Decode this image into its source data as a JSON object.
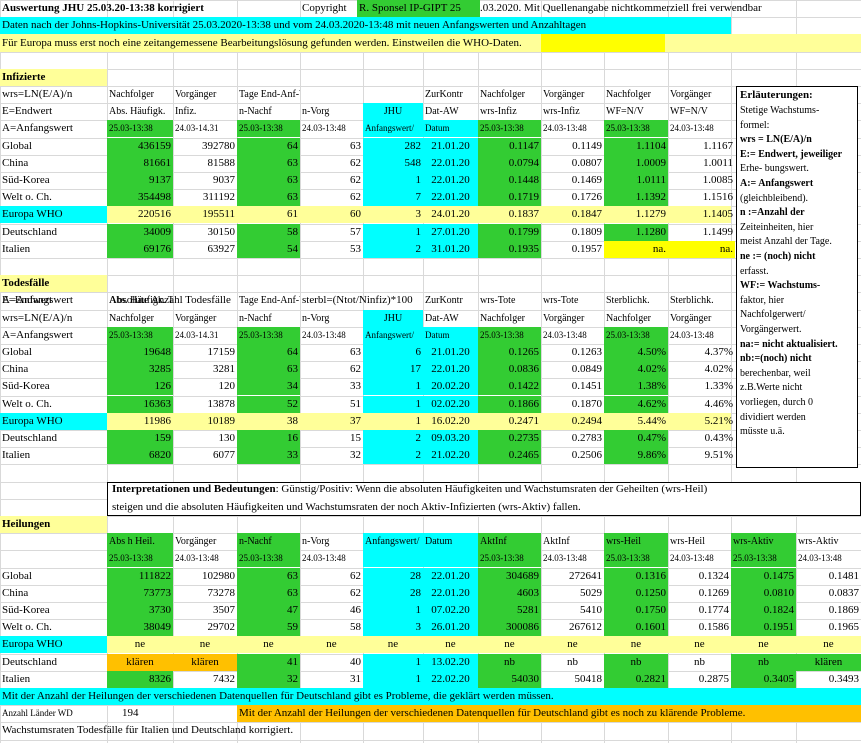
{
  "header": {
    "title": "Auswertung JHU 25.03.20-13:38 korrigiert",
    "copyright_pre": "Copyright",
    "copyright_green": "R. Sponsel IP-GIPT 25",
    "copyright_post": ".03.2020. Mit Quellenangabe nichtkommerziell frei verwendbar",
    "source_line": "Daten nach der Johns-Hopkins-Universität 25.03.2020-13:38  und vom 24.03.2020-13:48 mit neuen Anfangswerten und Anzahltagen",
    "europe_line": "Für Europa muss erst noch eine zeitangemessene Bearbeitungslösung gefunden werden. Einstweilen die WHO-Daten."
  },
  "infizierte": {
    "title": "Infizierte",
    "hdr1": [
      "wrs=LN(E/A)/n",
      "Nachfolger",
      "Vorgänger",
      "Tage End-Anf-Wert",
      "",
      "",
      "ZurKontr",
      "Nachfolger",
      "Vorgänger",
      "Nachfolger",
      "Vorgänger"
    ],
    "hdr2": [
      "E=Endwert",
      "Abs. Häufigk.",
      "Infiz.",
      "n-Nachf",
      "n-Vorg",
      "JHU",
      "Dat-AW",
      "wrs-Infiz",
      "wrs-Infiz",
      "WF=N/V",
      "WF=N/V"
    ],
    "hdr3": [
      "A=Anfangswert",
      "25.03-13:38",
      "24.03-14.31",
      "25.03-13:38",
      "24.03-13:48",
      "Anfangswert/",
      "Datum",
      "25.03-13:38",
      "24.03-13:48",
      "25.03-13:38",
      "24.03-13:48"
    ],
    "rows": [
      {
        "name": "Global",
        "v": [
          "436159",
          "392780",
          "64",
          "63",
          "282",
          "21.01.20",
          "0.1147",
          "0.1149",
          "1.1104",
          "1.1167"
        ]
      },
      {
        "name": "China",
        "v": [
          "81661",
          "81588",
          "63",
          "62",
          "548",
          "22.01.20",
          "0.0794",
          "0.0807",
          "1.0009",
          "1.0011"
        ]
      },
      {
        "name": "Süd-Korea",
        "v": [
          "9137",
          "9037",
          "63",
          "62",
          "1",
          "22.01.20",
          "0.1448",
          "0.1469",
          "1.0111",
          "1.0085"
        ]
      },
      {
        "name": "Welt o. Ch.",
        "v": [
          "354498",
          "311192",
          "63",
          "62",
          "7",
          "22.01.20",
          "0.1719",
          "0.1726",
          "1.1392",
          "1.1516"
        ]
      },
      {
        "name": "Europa WHO",
        "v": [
          "220516",
          "195511",
          "61",
          "60",
          "3",
          "24.01.20",
          "0.1837",
          "0.1847",
          "1.1279",
          "1.1405"
        ]
      },
      {
        "name": "Deutschland",
        "v": [
          "34009",
          "30150",
          "58",
          "57",
          "1",
          "27.01.20",
          "0.1799",
          "0.1809",
          "1.1280",
          "1.1499"
        ]
      },
      {
        "name": "Italien",
        "v": [
          "69176",
          "63927",
          "54",
          "53",
          "2",
          "31.01.20",
          "0.1935",
          "0.1957",
          "na.",
          "na."
        ]
      }
    ]
  },
  "todesfaelle": {
    "title": "Todesfälle",
    "sub_a": "A=Anfangswert",
    "sub_abs": "Absolute Anzahl Todesfälle",
    "sub_formula": "sterbl=(Ntot/Ninfiz)*100",
    "hdr1": [
      "E=Endwert",
      "Abs. Häufigk. Tote",
      "",
      "Tage End-Anf-Wert",
      "",
      "",
      "ZurKontr",
      "wrs-Tote",
      "wrs-Tote",
      "Sterblichk.",
      "Sterblichk."
    ],
    "hdr2": [
      "wrs=LN(E/A)/n",
      "Nachfolger",
      "Vorgänger",
      "n-Nachf",
      "n-Vorg",
      "JHU",
      "Dat-AW",
      "Nachfolger",
      "Vorgänger",
      "Nachfolger",
      "Vorgänger"
    ],
    "hdr3": [
      "A=Anfangswert",
      "25.03-13:38",
      "24.03-14.31",
      "25.03-13:38",
      "24.03-13:48",
      "Anfangswert/",
      "Datum",
      "25.03-13:38",
      "24.03-13:48",
      "25.03-13:38",
      "24.03-13:48"
    ],
    "rows": [
      {
        "name": "Global",
        "v": [
          "19648",
          "17159",
          "64",
          "63",
          "6",
          "21.01.20",
          "0.1265",
          "0.1263",
          "4.50%",
          "4.37%"
        ]
      },
      {
        "name": "China",
        "v": [
          "3285",
          "3281",
          "63",
          "62",
          "17",
          "22.01.20",
          "0.0836",
          "0.0849",
          "4.02%",
          "4.02%"
        ]
      },
      {
        "name": "Süd-Korea",
        "v": [
          "126",
          "120",
          "34",
          "33",
          "1",
          "20.02.20",
          "0.1422",
          "0.1451",
          "1.38%",
          "1.33%"
        ]
      },
      {
        "name": "Welt o. Ch.",
        "v": [
          "16363",
          "13878",
          "52",
          "51",
          "1",
          "02.02.20",
          "0.1866",
          "0.1870",
          "4.62%",
          "4.46%"
        ]
      },
      {
        "name": "Europa WHO",
        "v": [
          "11986",
          "10189",
          "38",
          "37",
          "1",
          "16.02.20",
          "0.2471",
          "0.2494",
          "5.44%",
          "5.21%"
        ]
      },
      {
        "name": "Deutschland",
        "v": [
          "159",
          "130",
          "16",
          "15",
          "2",
          "09.03.20",
          "0.2735",
          "0.2783",
          "0.47%",
          "0.43%"
        ]
      },
      {
        "name": "Italien",
        "v": [
          "6820",
          "6077",
          "33",
          "32",
          "2",
          "21.02.20",
          "0.2465",
          "0.2506",
          "9.86%",
          "9.51%"
        ]
      }
    ]
  },
  "interpretation": {
    "bold": "Interpretationen und Bedeutungen",
    "text1": ": Günstig/Positiv: Wenn die absoluten Häufigkeiten und Wachstumsraten der Geheilten (wrs-Heil)",
    "text2": "steigen und die absoluten Häufigkeiten und Wachstumsraten der noch Aktiv-Infizierten (wrs-Aktiv) fallen."
  },
  "heilungen": {
    "title": "Heilungen",
    "hdr1": [
      "",
      "Abs h Heil.",
      "Vorgänger",
      "n-Nachf",
      "n-Vorg",
      "Anfangswert/",
      "Datum",
      "AktInf",
      "AktInf",
      "wrs-Heil",
      "wrs-Heil",
      "wrs-Aktiv",
      "wrs-Aktiv"
    ],
    "hdr2": [
      "",
      "25.03-13:38",
      "24.03-13:48",
      "25.03-13:38",
      "24.03-13:48",
      "",
      "",
      "25.03-13:38",
      "24.03-13:48",
      "25.03-13:38",
      "24.03-13:48",
      "25.03-13:38",
      "24.03-13:48"
    ],
    "rows": [
      {
        "name": "Global",
        "v": [
          "111822",
          "102980",
          "63",
          "62",
          "28",
          "22.01.20",
          "304689",
          "272641",
          "0.1316",
          "0.1324",
          "0.1475",
          "0.1481"
        ]
      },
      {
        "name": "China",
        "v": [
          "73773",
          "73278",
          "63",
          "62",
          "28",
          "22.01.20",
          "4603",
          "5029",
          "0.1250",
          "0.1269",
          "0.0810",
          "0.0837"
        ]
      },
      {
        "name": "Süd-Korea",
        "v": [
          "3730",
          "3507",
          "47",
          "46",
          "1",
          "07.02.20",
          "5281",
          "5410",
          "0.1750",
          "0.1774",
          "0.1824",
          "0.1869"
        ]
      },
      {
        "name": "Welt o. Ch.",
        "v": [
          "38049",
          "29702",
          "59",
          "58",
          "3",
          "26.01.20",
          "300086",
          "267612",
          "0.1601",
          "0.1586",
          "0.1951",
          "0.1965"
        ]
      },
      {
        "name": "Europa WHO",
        "v": [
          "ne",
          "ne",
          "ne",
          "ne",
          "ne",
          "ne",
          "ne",
          "ne",
          "ne",
          "ne",
          "ne",
          "ne"
        ]
      },
      {
        "name": "Deutschland",
        "v": [
          "klären",
          "klären",
          "41",
          "40",
          "1",
          "13.02.20",
          "nb",
          "nb",
          "nb",
          "nb",
          "nb",
          "klären"
        ]
      },
      {
        "name": "Italien",
        "v": [
          "8326",
          "7432",
          "32",
          "31",
          "1",
          "22.02.20",
          "54030",
          "50418",
          "0.2821",
          "0.2875",
          "0.3405",
          "0.3493"
        ]
      }
    ]
  },
  "footer": {
    "problem1": "Mit der Anzahl der Heilungen der verschiedenen Datenquellen  für Deutschland gibt es Probleme, die geklärt werden müssen.",
    "laender_label": "Anzahl Länder WD",
    "laender_value": "194",
    "problem2": "Mit der Anzahl der Heilungen der verschiedenen Datenquellen  für Deutschland gibt es noch zu klärende Probleme.",
    "corrected": "Wachstumsraten Todesfälle für Italien und Deutschland korrigiert."
  },
  "legend": {
    "title": "Erläuterungen:",
    "lines": [
      "Stetige Wachstums-",
      "formel:",
      "wrs = LN(E/A)/n",
      "E:= Endwert, jeweiliger",
      "Erhe- bungswert.",
      "A:= Anfangswert",
      "(gleichbleibend).",
      "n :=Anzahl der",
      "Zeiteinheiten, hier",
      "meist Anzahl der Tage.",
      "ne := (noch) nicht",
      "erfasst.",
      "WF:= Wachstums-",
      "faktor, hier",
      "Nachfolgerwert/",
      "Vorgängerwert.",
      "na:= nicht aktualisiert.",
      "nb:=(noch)  nicht",
      "berechenbar, weil",
      "z.B.Werte nicht",
      "vorliegen, durch 0",
      "dividiert werden",
      "müsste u.ä."
    ]
  },
  "colors": {
    "green": "#33cc33",
    "cyan": "#00ffff",
    "lightyellow": "#ffff99",
    "yellow": "#ffff00",
    "orange": "#ffc000"
  }
}
